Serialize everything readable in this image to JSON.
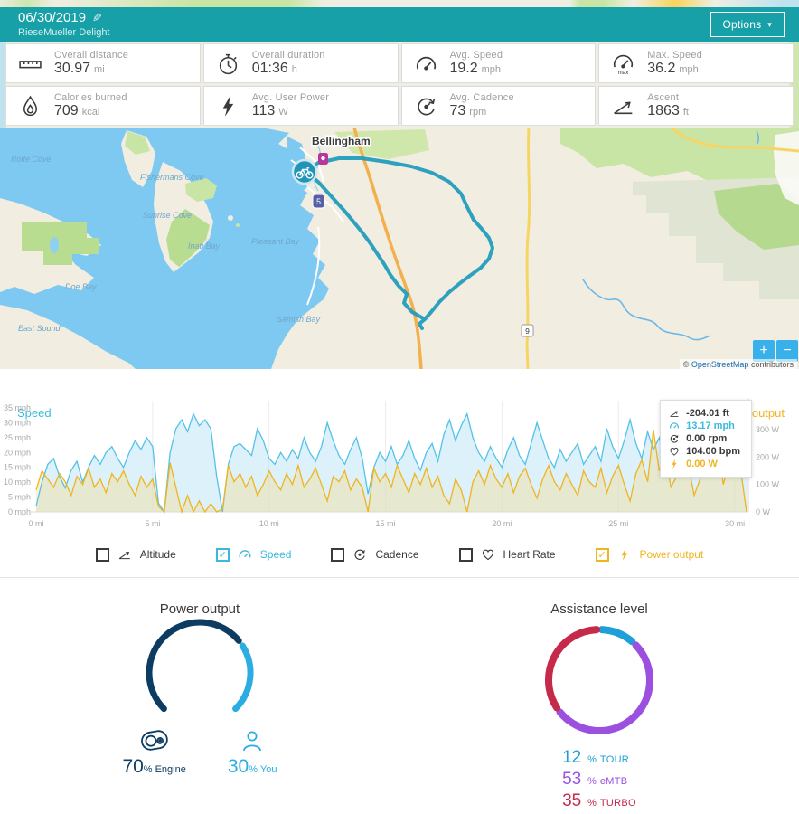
{
  "header": {
    "date": "06/30/2019",
    "title": "RieseMueller Delight",
    "options_label": "Options",
    "edit_icon": "pencil"
  },
  "stats": [
    {
      "label": "Overall distance",
      "value": "30.97",
      "unit": "mi",
      "icon": "ruler"
    },
    {
      "label": "Overall duration",
      "value": "01:36",
      "unit": "h",
      "icon": "stopwatch"
    },
    {
      "label": "Avg. Speed",
      "value": "19.2",
      "unit": "mph",
      "icon": "speedometer"
    },
    {
      "label": "Max. Speed",
      "value": "36.2",
      "unit": "mph",
      "icon": "speedometer-max"
    },
    {
      "label": "Calories burned",
      "value": "709",
      "unit": "kcal",
      "icon": "calories-drop"
    },
    {
      "label": "Avg. User Power",
      "value": "113",
      "unit": "W",
      "icon": "lightning-bolt"
    },
    {
      "label": "Avg. Cadence",
      "value": "73",
      "unit": "rpm",
      "icon": "cadence"
    },
    {
      "label": "Ascent",
      "value": "1863",
      "unit": "ft",
      "icon": "ascent"
    }
  ],
  "map": {
    "city": "Bellingham",
    "interstate_shield": "5",
    "hwy_shield": "9",
    "bays": [
      "Rolfe Cove",
      "Fishermans Cove",
      "Sunrise Cove",
      "Inati Bay",
      "Pleasant Bay",
      "Doe Bay",
      "East Sound",
      "Samish Bay"
    ],
    "zoom_in": "+",
    "zoom_out": "−",
    "attribution": {
      "prefix": "©",
      "link": "OpenStreetMap",
      "suffix": "contributors"
    },
    "route_color": "#1d9abc",
    "marker_color": "#2095ba"
  },
  "chart": {
    "tooltip": [
      {
        "icon": "altitude",
        "value": "-204.01 ft",
        "color": "#3a3a3a"
      },
      {
        "icon": "speed",
        "value": "13.17 mph",
        "color": "#3bb9dc"
      },
      {
        "icon": "cadence",
        "value": "0.00 rpm",
        "color": "#3a3a3a"
      },
      {
        "icon": "heart",
        "value": "104.00 bpm",
        "color": "#3a3a3a"
      },
      {
        "icon": "power",
        "value": "0.00 W",
        "color": "#f0b41e"
      }
    ],
    "legend": [
      {
        "label": "Altitude",
        "icon": "altitude",
        "checked": false,
        "color": "#3a3a3a"
      },
      {
        "label": "Speed",
        "icon": "speed",
        "checked": true,
        "color": "#3bb9dc"
      },
      {
        "label": "Cadence",
        "icon": "cadence",
        "checked": false,
        "color": "#3a3a3a"
      },
      {
        "label": "Heart Rate",
        "icon": "heart",
        "checked": false,
        "color": "#3a3a3a"
      },
      {
        "label": "Power output",
        "icon": "power",
        "checked": true,
        "color": "#f0b41e"
      }
    ]
  },
  "chart_data": [
    {
      "type": "line",
      "x_start": 0,
      "x_step": 0.25,
      "xlim": [
        0,
        30.5
      ],
      "x_ticks": [
        0,
        5,
        10,
        15,
        20,
        25,
        30
      ],
      "x_tick_labels": [
        "0 mi",
        "5 mi",
        "10 mi",
        "15 mi",
        "20 mi",
        "25 mi",
        "30 mi"
      ],
      "grid": "vertical-only",
      "left_axis": {
        "label": "Speed",
        "unit": "mph",
        "lim": [
          0,
          35
        ],
        "ticks": [
          0,
          5,
          10,
          15,
          20,
          25,
          30,
          35
        ],
        "tick_labels": [
          "0 mph",
          "5 mph",
          "10 mph",
          "15 mph",
          "20 mph",
          "25 mph",
          "30 mph",
          "35 mph"
        ],
        "color": "#3bb9dc"
      },
      "right_axis": {
        "label": "Power output",
        "unit": "W",
        "lim": [
          0,
          380
        ],
        "ticks": [
          0,
          100,
          200,
          300
        ],
        "tick_labels": [
          "0 W",
          "100 W",
          "200 W",
          "300 W"
        ],
        "color": "#f0b41e"
      },
      "series": [
        {
          "name": "Speed",
          "axis": "left",
          "color": "#54c2e8",
          "fill": "#bfe6f5",
          "values": [
            2,
            10,
            16,
            18,
            12,
            8,
            14,
            17,
            10,
            15,
            19,
            16,
            20,
            22,
            18,
            15,
            20,
            24,
            21,
            25,
            22,
            3,
            0,
            20,
            28,
            31,
            27,
            33,
            29,
            31,
            28,
            12,
            0,
            16,
            22,
            23,
            21,
            19,
            28,
            24,
            18,
            16,
            20,
            17,
            21,
            18,
            25,
            20,
            17,
            22,
            30,
            24,
            19,
            16,
            21,
            25,
            18,
            6,
            15,
            20,
            17,
            22,
            16,
            19,
            24,
            18,
            14,
            20,
            23,
            17,
            26,
            31,
            24,
            29,
            33,
            25,
            20,
            17,
            22,
            18,
            15,
            21,
            25,
            19,
            16,
            23,
            30,
            24,
            18,
            15,
            21,
            17,
            20,
            23,
            16,
            19,
            22,
            17,
            28,
            22,
            18,
            24,
            31,
            23,
            18,
            27,
            21,
            25,
            17,
            22,
            28,
            18,
            23,
            33,
            26,
            19,
            24,
            17,
            27,
            21,
            25,
            30,
            22
          ]
        },
        {
          "name": "Power output",
          "axis": "right",
          "color": "#f0b41e",
          "fill": "#f6d98a",
          "values": [
            80,
            150,
            120,
            90,
            140,
            110,
            60,
            130,
            100,
            160,
            90,
            120,
            70,
            140,
            110,
            150,
            100,
            60,
            130,
            90,
            120,
            20,
            0,
            180,
            90,
            0,
            60,
            0,
            40,
            0,
            30,
            0,
            10,
            170,
            110,
            140,
            90,
            130,
            60,
            100,
            150,
            110,
            80,
            140,
            100,
            170,
            90,
            120,
            160,
            100,
            40,
            130,
            110,
            150,
            80,
            120,
            90,
            0,
            160,
            110,
            140,
            90,
            170,
            120,
            70,
            140,
            100,
            160,
            90,
            130,
            60,
            30,
            120,
            80,
            0,
            110,
            150,
            100,
            170,
            120,
            90,
            140,
            70,
            130,
            160,
            100,
            50,
            120,
            170,
            110,
            80,
            140,
            100,
            60,
            150,
            110,
            90,
            160,
            70,
            130,
            170,
            100,
            40,
            140,
            190,
            110,
            300,
            150,
            220,
            90,
            130,
            250,
            170,
            60,
            120,
            200,
            140,
            260,
            100,
            180,
            310,
            150,
            0
          ]
        }
      ]
    },
    {
      "type": "gauge-donut",
      "title": "Power output",
      "arc": {
        "start_deg": 225,
        "sweep_deg": 270,
        "gap_deg": 7
      },
      "segments": [
        {
          "name": "Engine",
          "value": 70,
          "unit": "%",
          "color": "#0d3c63",
          "icon": "engine"
        },
        {
          "name": "You",
          "value": 30,
          "unit": "%",
          "color": "#2bade2",
          "icon": "person"
        }
      ]
    },
    {
      "type": "donut",
      "title": "Assistance level",
      "gap_deg": 6,
      "segments": [
        {
          "name": "TOUR",
          "value": 12,
          "unit": "%",
          "color": "#1f9fd8"
        },
        {
          "name": "eMTB",
          "value": 53,
          "unit": "%",
          "color": "#9b50e0"
        },
        {
          "name": "TURBO",
          "value": 35,
          "unit": "%",
          "color": "#c52a4a"
        }
      ]
    }
  ]
}
